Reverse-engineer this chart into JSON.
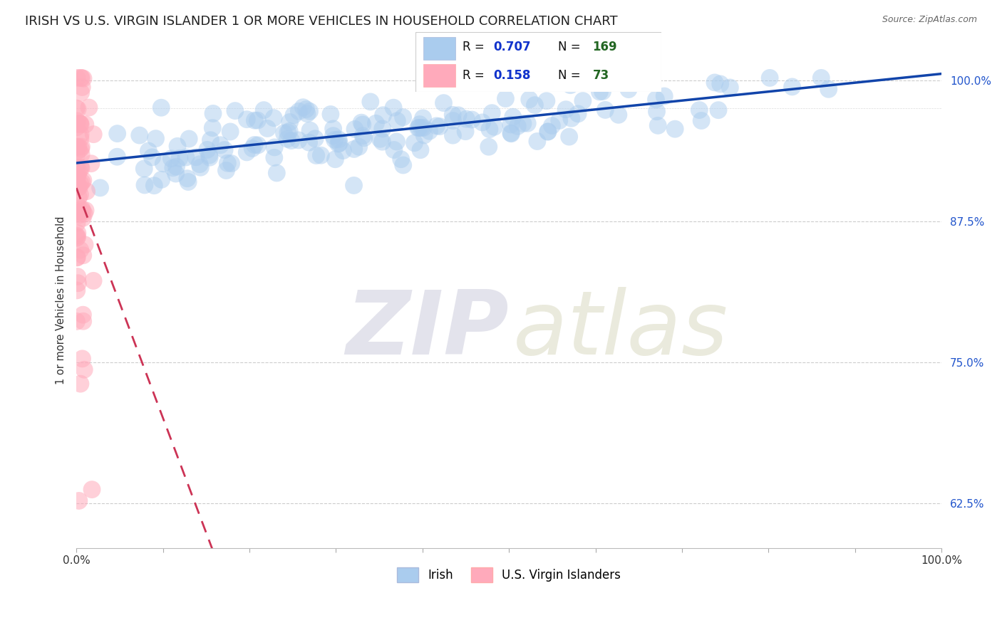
{
  "title": "IRISH VS U.S. VIRGIN ISLANDER 1 OR MORE VEHICLES IN HOUSEHOLD CORRELATION CHART",
  "source": "Source: ZipAtlas.com",
  "ylabel": "1 or more Vehicles in Household",
  "yticks": [
    62.5,
    75.0,
    87.5,
    100.0
  ],
  "xlim": [
    0.0,
    1.0
  ],
  "ylim": [
    0.585,
    1.025
  ],
  "irish_R": 0.707,
  "irish_N": 169,
  "usvi_R": 0.158,
  "usvi_N": 73,
  "irish_color": "#aaccee",
  "usvi_color": "#ffaabb",
  "irish_line_color": "#1144aa",
  "usvi_line_color": "#cc3355",
  "watermark_zip_color": "#bbbbdd",
  "watermark_atlas_color": "#ccccbb",
  "background_color": "#ffffff",
  "title_fontsize": 13,
  "source_fontsize": 9,
  "legend_r_color": "#1133cc",
  "legend_n_color": "#226622"
}
